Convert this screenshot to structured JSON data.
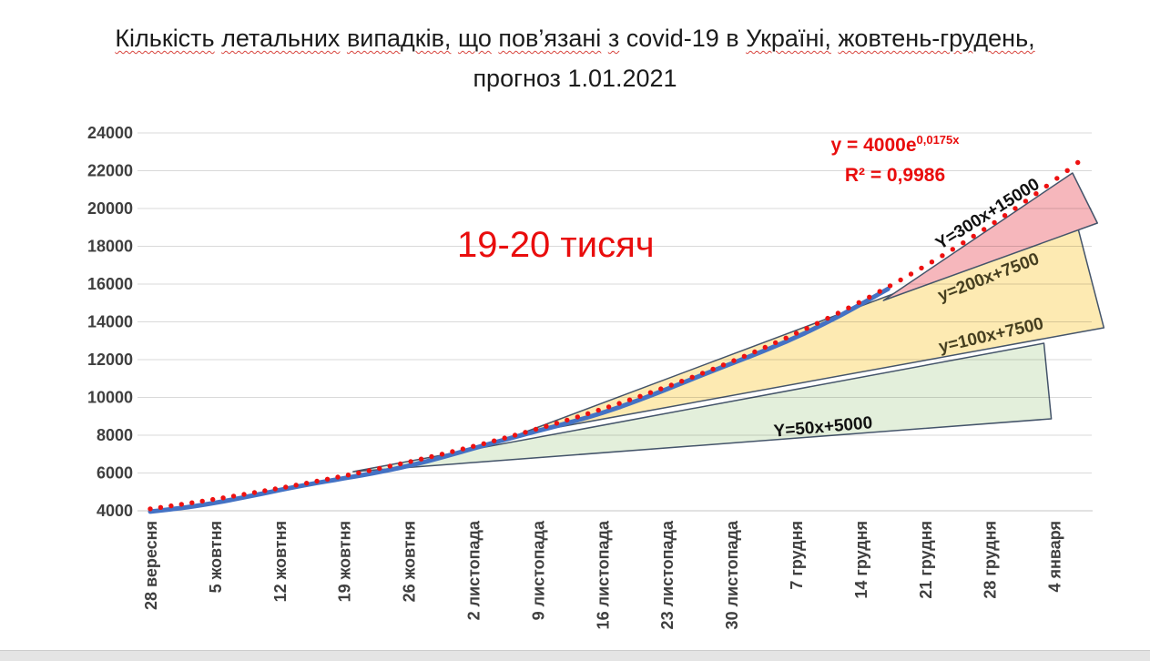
{
  "page": {
    "background": "#ffffff",
    "bottom_bar_color": "#e4e4e4"
  },
  "title": {
    "line1_words": [
      {
        "t": "Кількість",
        "m": true
      },
      {
        "t": "летальних",
        "m": true
      },
      {
        "t": "випадків,",
        "m": true
      },
      {
        "t": "що",
        "m": true
      },
      {
        "t": "пов’язані",
        "m": true
      },
      {
        "t": "з",
        "m": true
      },
      {
        "t": "covid-19",
        "m": false
      },
      {
        "t": "в",
        "m": false
      },
      {
        "t": "Україні,",
        "m": true
      },
      {
        "t": "жовтень-грудень,",
        "m": true
      }
    ],
    "line2": "прогноз 1.01.2021",
    "color": "#1b1b1b",
    "spellcheck_underline_color": "#d8453e"
  },
  "annotations": {
    "trend_eq_base": "y = 4000e",
    "trend_eq_exp": "0,0175x",
    "r_squared": "R² = 0,9986",
    "forecast": "19-20 тисяч",
    "color": "#e90d0d"
  },
  "chart_data": {
    "type": "line",
    "x_tick_labels": [
      "28 вересня",
      "5 жовтня",
      "12 жовтня",
      "19 жовтня",
      "26 жовтня",
      "2 листопада",
      "9 листопада",
      "16 листопада",
      "23 листопада",
      "30 листопада",
      "7 грудня",
      "14 грудня",
      "21 грудня",
      "28 грудня",
      "4 января"
    ],
    "x_tick_interval_days": 7,
    "y_tick_labels": [
      "4000",
      "6000",
      "8000",
      "10000",
      "12000",
      "14000",
      "16000",
      "18000",
      "20000",
      "22000",
      "24000"
    ],
    "y_min": 4000,
    "y_max": 24000,
    "grid": "horizontal",
    "gridline_color": "#d9d9d9",
    "series": [
      {
        "name": "actual-deaths",
        "color": "#4472c4",
        "style": "solid",
        "end_day": 80,
        "weekly_values": [
          4100,
          4615,
          5195,
          5850,
          6580,
          7410,
          8340,
          9390,
          10570,
          11900,
          13390,
          15070
        ]
      },
      {
        "name": "exponential-trend",
        "color": "#ee1111",
        "style": "dotted",
        "end_day": 101.5,
        "end_value": 22800,
        "weekly_values": [
          4100,
          4615,
          5195,
          5850,
          6580,
          7410,
          8340,
          9390,
          10570,
          11900,
          13390,
          15070,
          16960,
          19090,
          21480
        ],
        "fitted_curve": {
          "v0": 4100,
          "k_per_day": 0.0169
        }
      }
    ],
    "band_stroke": "#44546a",
    "bands": [
      {
        "name": "green-band",
        "fill": "#e3efdb",
        "points": [
          {
            "day": 22,
            "value": 6072
          },
          {
            "day": 96.9,
            "value": 12867
          },
          {
            "day": 97.7,
            "value": 8867
          }
        ]
      },
      {
        "name": "yellow-band",
        "fill": "#fdeab2",
        "points": [
          {
            "day": 40,
            "value": 8048
          },
          {
            "day": 100.5,
            "value": 19133
          },
          {
            "day": 103.4,
            "value": 13687
          }
        ]
      },
      {
        "name": "pink-band",
        "fill": "#f6b7bc",
        "points": [
          {
            "day": 79.5,
            "value": 15133
          },
          {
            "day": 100,
            "value": 21880
          },
          {
            "day": 102.7,
            "value": 19229
          }
        ]
      }
    ],
    "line_labels": [
      {
        "text": "Y=300x+15000",
        "color": "#111111",
        "angle_deg": -32,
        "pos": {
          "day": 91.1,
          "value": 19470
        }
      },
      {
        "text": "y=200x+7500",
        "color": "#463f20",
        "angle_deg": -21,
        "pos": {
          "day": 91.1,
          "value": 16096
        }
      },
      {
        "text": "y=100x+7500",
        "color": "#463f20",
        "angle_deg": -13,
        "pos": {
          "day": 91.3,
          "value": 13012
        }
      },
      {
        "text": "Y=50x+5000",
        "color": "#111111",
        "angle_deg": -5,
        "pos": {
          "day": 73,
          "value": 8150
        }
      }
    ]
  }
}
